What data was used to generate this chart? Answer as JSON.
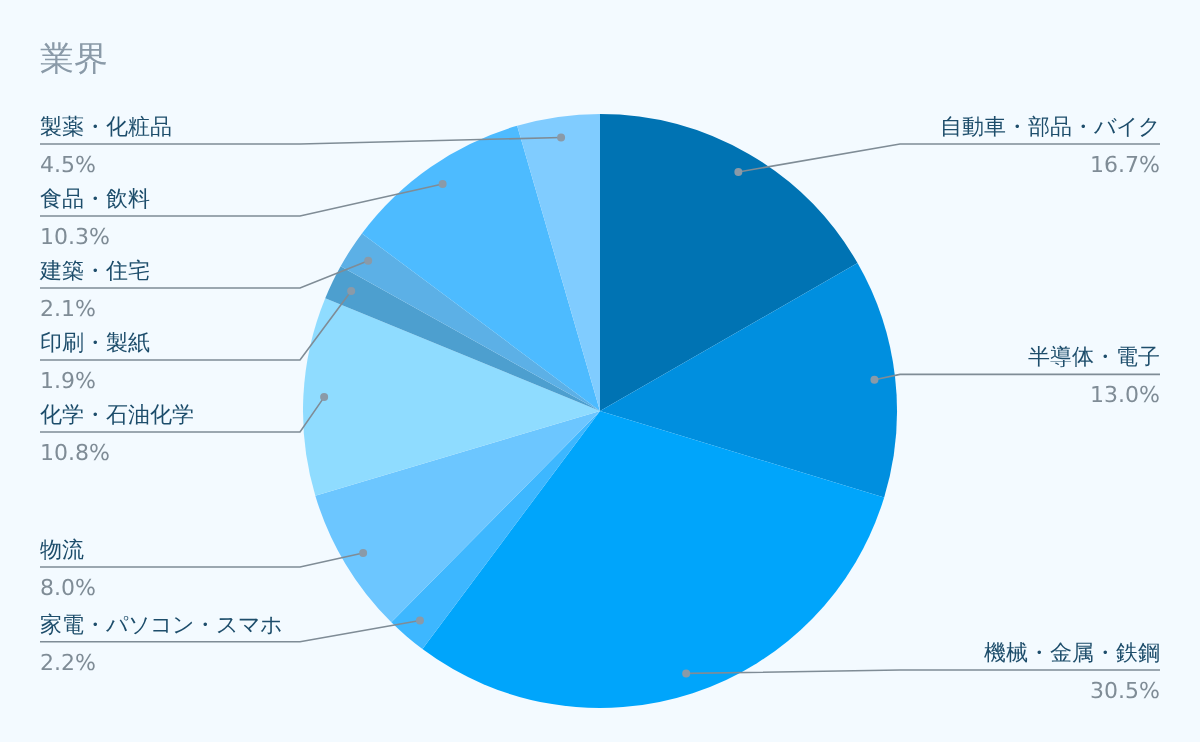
{
  "chart_data": {
    "type": "pie",
    "title": "業界",
    "categories": [
      "自動車・部品・バイク",
      "半導体・電子",
      "機械・金属・鉄鋼",
      "家電・パソコン・スマホ",
      "物流",
      "化学・石油化学",
      "印刷・製紙",
      "建築・住宅",
      "食品・飲料",
      "製薬・化粧品"
    ],
    "values": [
      16.7,
      13.0,
      30.5,
      2.2,
      8.0,
      10.8,
      1.9,
      2.1,
      10.3,
      4.5
    ],
    "colors": [
      "#0073b3",
      "#008fdf",
      "#00a5fb",
      "#3db7ff",
      "#6cc6ff",
      "#8fdcff",
      "#4d9fcf",
      "#5cb0e6",
      "#4dbbff",
      "#80ccff"
    ],
    "value_labels": [
      "16.7%",
      "13.0%",
      "30.5%",
      "2.2%",
      "8.0%",
      "10.8%",
      "1.9%",
      "2.1%",
      "10.3%",
      "4.5%"
    ],
    "legend": false
  }
}
